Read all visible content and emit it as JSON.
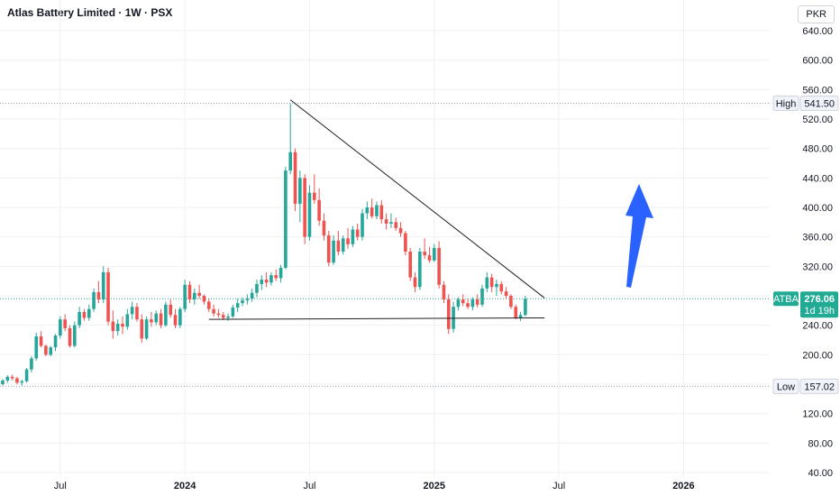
{
  "header": {
    "title": "Atlas Battery Limited · 1W · PSX",
    "currency": "PKR"
  },
  "colors": {
    "up": "#26a69a",
    "down": "#ef5350",
    "grid": "#eef0f3",
    "trend": "#1f1f1f",
    "arrow": "#2962ff",
    "price_tag": "#22ab94"
  },
  "chart_data": {
    "type": "candlestick",
    "symbol": "ATBA",
    "last_price": "276.06",
    "countdown": "1d 19h",
    "high_label": "High",
    "high_value": "541.50",
    "low_label": "Low",
    "low_value": "157.02",
    "ylim": [
      30,
      650
    ],
    "y_ticks": [
      "640.00",
      "600.00",
      "560.00",
      "520.00",
      "480.00",
      "440.00",
      "400.00",
      "360.00",
      "320.00",
      "280.00",
      "240.00",
      "200.00",
      "160.00",
      "120.00",
      "80.00",
      "40.00"
    ],
    "x_ticks": [
      "Jul",
      "2024",
      "Jul",
      "2025",
      "Jul",
      "2026"
    ],
    "x_tick_weeks": [
      12,
      38,
      64,
      90,
      116,
      142
    ],
    "grid": true,
    "candles": [
      [
        0,
        160,
        167,
        158,
        165
      ],
      [
        1,
        165,
        172,
        162,
        170
      ],
      [
        2,
        170,
        173,
        165,
        168
      ],
      [
        3,
        168,
        170,
        160,
        162
      ],
      [
        4,
        162,
        166,
        158,
        164
      ],
      [
        5,
        164,
        182,
        162,
        180
      ],
      [
        6,
        180,
        198,
        176,
        195
      ],
      [
        7,
        195,
        230,
        192,
        225
      ],
      [
        8,
        225,
        232,
        210,
        212
      ],
      [
        9,
        212,
        214,
        198,
        200
      ],
      [
        10,
        200,
        212,
        198,
        210
      ],
      [
        11,
        210,
        228,
        205,
        226
      ],
      [
        12,
        226,
        252,
        222,
        248
      ],
      [
        13,
        248,
        255,
        232,
        236
      ],
      [
        14,
        236,
        240,
        210,
        212
      ],
      [
        15,
        212,
        245,
        210,
        240
      ],
      [
        16,
        240,
        265,
        236,
        258
      ],
      [
        17,
        258,
        262,
        246,
        250
      ],
      [
        18,
        250,
        268,
        246,
        262
      ],
      [
        19,
        262,
        290,
        258,
        285
      ],
      [
        20,
        285,
        300,
        270,
        275
      ],
      [
        21,
        275,
        320,
        270,
        312
      ],
      [
        22,
        312,
        318,
        240,
        245
      ],
      [
        23,
        245,
        260,
        222,
        232
      ],
      [
        24,
        232,
        248,
        226,
        242
      ],
      [
        25,
        242,
        252,
        228,
        238
      ],
      [
        26,
        238,
        262,
        234,
        255
      ],
      [
        27,
        255,
        272,
        248,
        265
      ],
      [
        28,
        265,
        270,
        245,
        248
      ],
      [
        29,
        248,
        255,
        216,
        222
      ],
      [
        30,
        222,
        252,
        220,
        248
      ],
      [
        31,
        248,
        258,
        238,
        244
      ],
      [
        32,
        244,
        260,
        240,
        256
      ],
      [
        33,
        256,
        262,
        236,
        240
      ],
      [
        34,
        240,
        272,
        238,
        268
      ],
      [
        35,
        268,
        275,
        250,
        254
      ],
      [
        36,
        254,
        262,
        236,
        240
      ],
      [
        37,
        240,
        265,
        236,
        262
      ],
      [
        38,
        262,
        302,
        258,
        295
      ],
      [
        39,
        295,
        300,
        270,
        275
      ],
      [
        40,
        275,
        290,
        268,
        284
      ],
      [
        41,
        284,
        295,
        276,
        280
      ],
      [
        42,
        280,
        282,
        268,
        272
      ],
      [
        43,
        272,
        276,
        258,
        262
      ],
      [
        44,
        262,
        268,
        252,
        256
      ],
      [
        45,
        256,
        262,
        250,
        254
      ],
      [
        46,
        254,
        258,
        247,
        250
      ],
      [
        47,
        250,
        256,
        246,
        252
      ],
      [
        48,
        252,
        268,
        250,
        264
      ],
      [
        49,
        264,
        276,
        258,
        270
      ],
      [
        50,
        270,
        278,
        266,
        274
      ],
      [
        51,
        274,
        282,
        268,
        276
      ],
      [
        52,
        276,
        290,
        272,
        284
      ],
      [
        53,
        284,
        302,
        278,
        296
      ],
      [
        54,
        296,
        308,
        288,
        302
      ],
      [
        55,
        302,
        312,
        292,
        298
      ],
      [
        56,
        298,
        312,
        294,
        308
      ],
      [
        57,
        308,
        316,
        300,
        304
      ],
      [
        58,
        304,
        322,
        298,
        318
      ],
      [
        59,
        318,
        455,
        316,
        450
      ],
      [
        60,
        450,
        541,
        445,
        475
      ],
      [
        61,
        475,
        480,
        395,
        405
      ],
      [
        62,
        405,
        450,
        380,
        440
      ],
      [
        63,
        440,
        445,
        350,
        360
      ],
      [
        64,
        360,
        430,
        355,
        420
      ],
      [
        65,
        420,
        445,
        405,
        410
      ],
      [
        66,
        410,
        426,
        375,
        382
      ],
      [
        67,
        382,
        392,
        355,
        362
      ],
      [
        68,
        362,
        368,
        320,
        325
      ],
      [
        69,
        325,
        362,
        322,
        355
      ],
      [
        70,
        355,
        368,
        335,
        340
      ],
      [
        71,
        340,
        362,
        336,
        358
      ],
      [
        72,
        358,
        372,
        344,
        350
      ],
      [
        73,
        350,
        375,
        346,
        370
      ],
      [
        74,
        370,
        378,
        355,
        360
      ],
      [
        75,
        360,
        398,
        355,
        392
      ],
      [
        76,
        392,
        408,
        384,
        400
      ],
      [
        77,
        400,
        412,
        385,
        388
      ],
      [
        78,
        388,
        408,
        384,
        403
      ],
      [
        79,
        403,
        410,
        378,
        384
      ],
      [
        80,
        384,
        392,
        370,
        378
      ],
      [
        81,
        378,
        392,
        372,
        380
      ],
      [
        82,
        380,
        386,
        368,
        372
      ],
      [
        83,
        372,
        380,
        360,
        365
      ],
      [
        84,
        365,
        368,
        335,
        340
      ],
      [
        85,
        340,
        345,
        300,
        305
      ],
      [
        86,
        305,
        312,
        285,
        292
      ],
      [
        87,
        292,
        345,
        288,
        340
      ],
      [
        88,
        340,
        358,
        330,
        335
      ],
      [
        89,
        335,
        346,
        325,
        328
      ],
      [
        90,
        328,
        350,
        326,
        345
      ],
      [
        91,
        345,
        354,
        290,
        295
      ],
      [
        92,
        295,
        300,
        270,
        275
      ],
      [
        93,
        275,
        282,
        228,
        235
      ],
      [
        94,
        235,
        272,
        230,
        265
      ],
      [
        95,
        265,
        278,
        260,
        275
      ],
      [
        96,
        275,
        282,
        266,
        270
      ],
      [
        97,
        270,
        276,
        262,
        265
      ],
      [
        98,
        265,
        278,
        260,
        275
      ],
      [
        99,
        275,
        282,
        264,
        268
      ],
      [
        100,
        268,
        295,
        265,
        290
      ],
      [
        101,
        290,
        312,
        285,
        305
      ],
      [
        102,
        305,
        310,
        285,
        292
      ],
      [
        103,
        292,
        302,
        280,
        296
      ],
      [
        104,
        296,
        300,
        282,
        286
      ],
      [
        105,
        286,
        292,
        276,
        280
      ],
      [
        106,
        280,
        282,
        262,
        265
      ],
      [
        107,
        265,
        268,
        248,
        250
      ],
      [
        108,
        250,
        258,
        246,
        254
      ],
      [
        109,
        254,
        280,
        252,
        276
      ]
    ],
    "trendlines": [
      {
        "from": [
          60,
          546
        ],
        "to": [
          113,
          277
        ]
      },
      {
        "from": [
          43,
          248
        ],
        "to": [
          113,
          250
        ]
      }
    ]
  }
}
